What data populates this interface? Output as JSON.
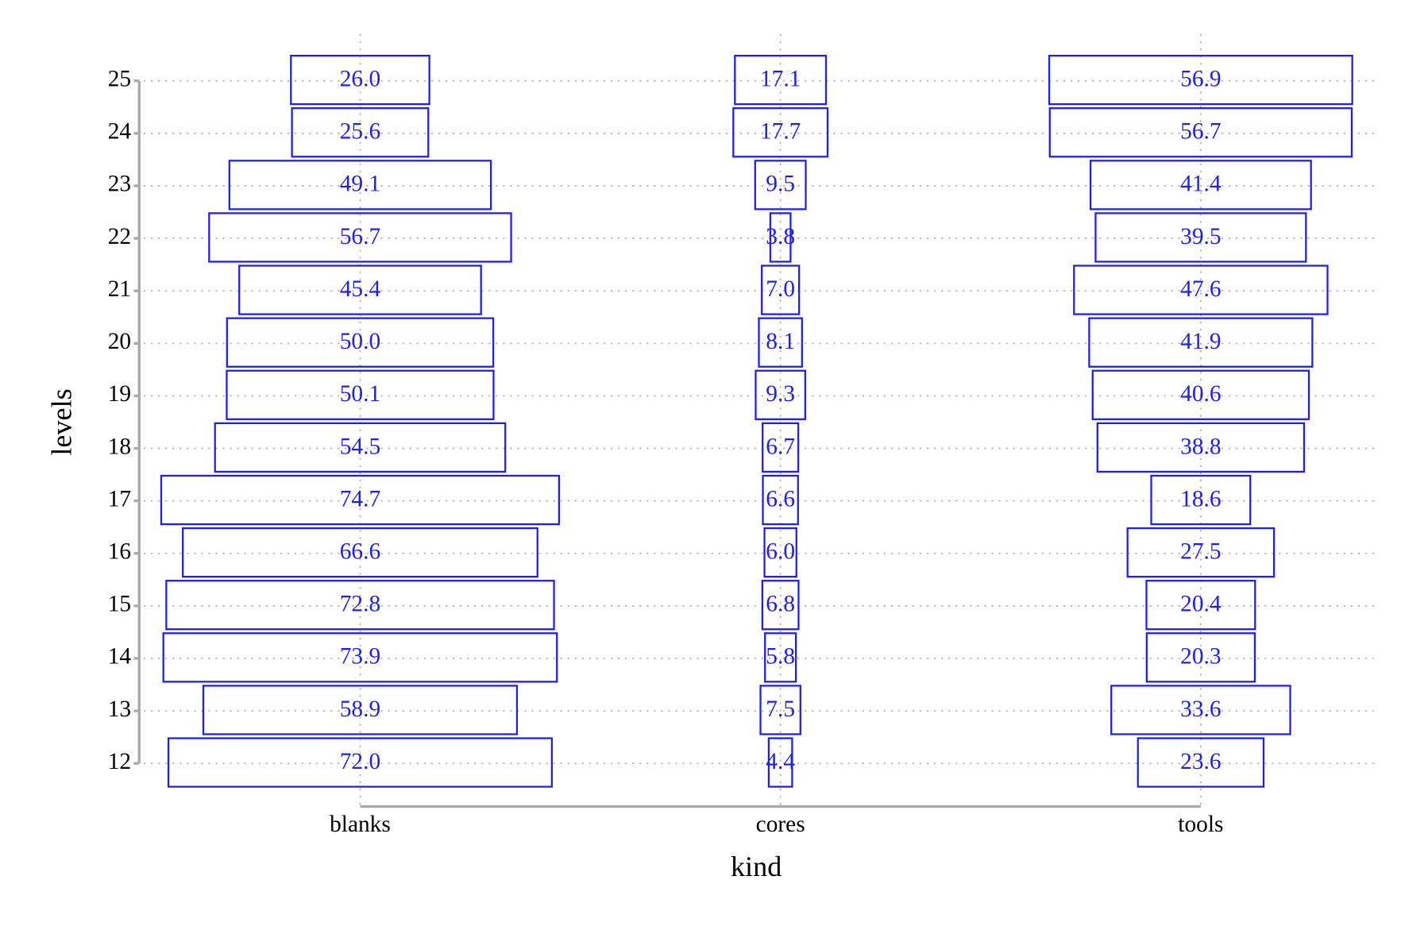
{
  "chart_data": {
    "type": "tile",
    "x_label": "kind",
    "y_label": "levels",
    "levels": [
      12,
      13,
      14,
      15,
      16,
      17,
      18,
      19,
      20,
      21,
      22,
      23,
      24,
      25
    ],
    "series": [
      {
        "name": "blanks",
        "color": "#1f1fe6",
        "values": [
          72.0,
          58.9,
          73.9,
          72.8,
          66.6,
          74.7,
          54.5,
          50.1,
          50.0,
          45.4,
          56.7,
          49.1,
          25.6,
          26.0
        ],
        "value_labels": [
          "72.0",
          "58.9",
          "73.9",
          "72.8",
          "66.6",
          "74.7",
          "54.5",
          "50.1",
          "50.0",
          "45.4",
          "56.7",
          "49.1",
          "25.6",
          "26.0"
        ]
      },
      {
        "name": "cores",
        "color": "#1f1fe6",
        "values": [
          4.4,
          7.5,
          5.8,
          6.8,
          6.0,
          6.6,
          6.7,
          9.3,
          8.1,
          7.0,
          3.8,
          9.5,
          17.7,
          17.1
        ],
        "value_labels": [
          "4.4",
          "7.5",
          "5.8",
          "6.8",
          "6.0",
          "6.6",
          "6.7",
          "9.3",
          "8.1",
          "7.0",
          "3.8",
          "9.5",
          "17.7",
          "17.1"
        ]
      },
      {
        "name": "tools",
        "color": "#1f1fe6",
        "values": [
          23.6,
          33.6,
          20.3,
          20.4,
          27.5,
          18.6,
          38.8,
          40.6,
          41.9,
          47.6,
          39.5,
          41.4,
          56.7,
          56.9
        ],
        "value_labels": [
          "23.6",
          "33.6",
          "20.3",
          "20.4",
          "27.5",
          "18.6",
          "38.8",
          "40.6",
          "41.9",
          "47.6",
          "39.5",
          "41.4",
          "56.7",
          "56.9"
        ]
      }
    ],
    "grid": true
  }
}
